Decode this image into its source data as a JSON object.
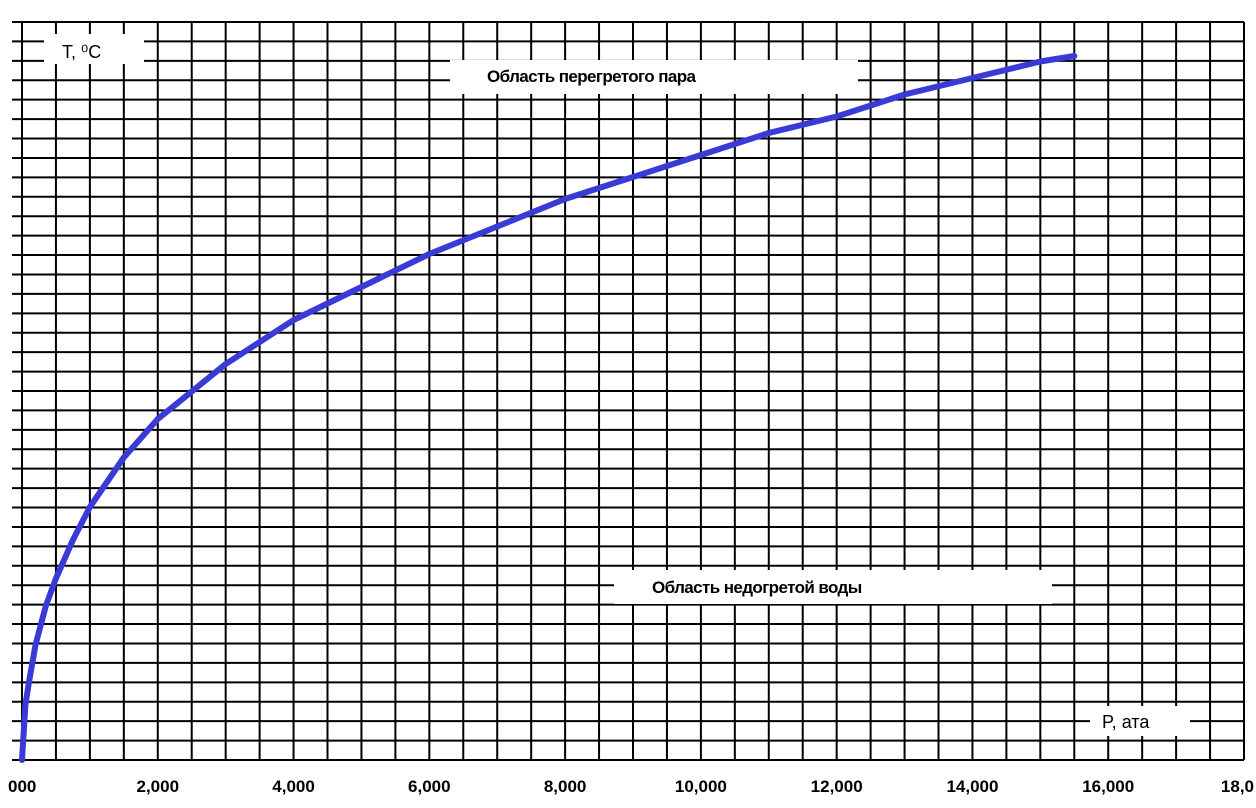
{
  "chart_data": {
    "type": "line",
    "xlabel": "P, ата",
    "ylabel": "T, ⁰C",
    "xlim": [
      0,
      18
    ],
    "x_ticks": [
      0,
      2,
      4,
      6,
      8,
      10,
      12,
      14,
      16,
      18
    ],
    "x_tick_labels": [
      "000",
      "2,000",
      "4,000",
      "6,000",
      "8,000",
      "10,000",
      "12,000",
      "14,000",
      "16,000",
      "18,0"
    ],
    "grid": true,
    "annotations": [
      "Область перегретого пара",
      "Область недогретой воды"
    ],
    "series": [
      {
        "color": "#3a3ad6",
        "x": [
          0.0,
          0.05,
          0.1,
          0.2,
          0.35,
          0.5,
          0.75,
          1.0,
          1.5,
          2.0,
          3.0,
          4.0,
          5.0,
          6.0,
          7.0,
          8.0,
          9.0,
          10.0,
          11.0,
          12.0,
          13.0,
          14.0,
          15.0,
          15.5
        ],
        "y": [
          0.0,
          0.1,
          0.14,
          0.21,
          0.28,
          0.33,
          0.4,
          0.46,
          0.55,
          0.62,
          0.72,
          0.8,
          0.86,
          0.92,
          0.97,
          1.02,
          1.06,
          1.1,
          1.14,
          1.17,
          1.21,
          1.24,
          1.27,
          1.28
        ]
      }
    ]
  }
}
